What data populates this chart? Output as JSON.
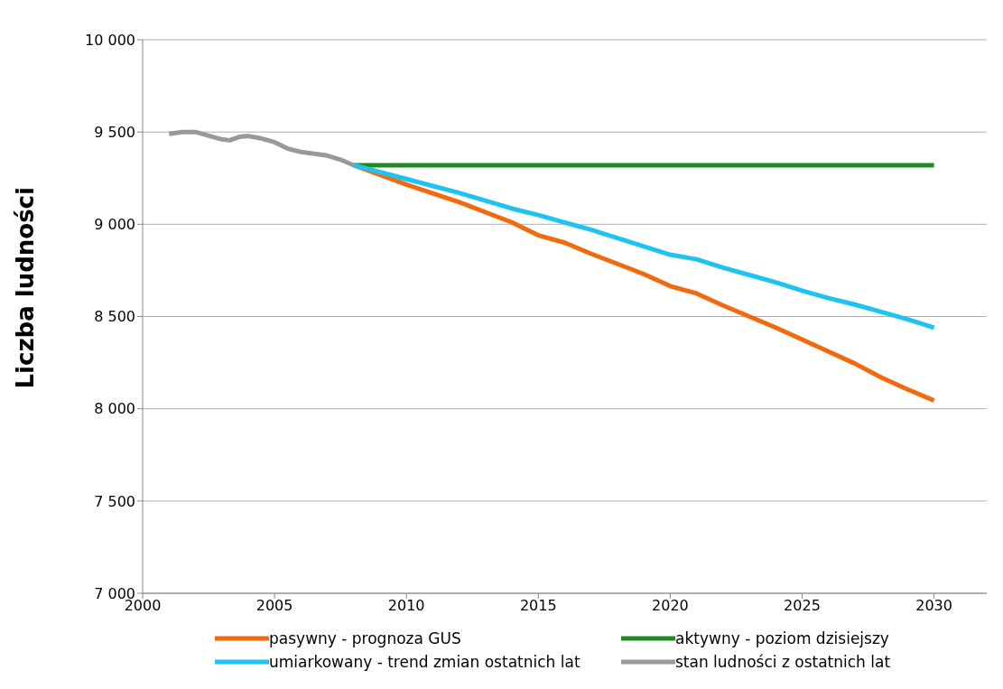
{
  "chart_data": {
    "type": "line",
    "ylabel": "Liczba ludności",
    "xlim": [
      2000,
      2032
    ],
    "xticks": [
      2000,
      2005,
      2010,
      2015,
      2020,
      2025,
      2030
    ],
    "ylim": [
      7000,
      10000
    ],
    "yticks": [
      {
        "value": 7000,
        "label": "7 000"
      },
      {
        "value": 7500,
        "label": "7 500"
      },
      {
        "value": 8000,
        "label": "8 000"
      },
      {
        "value": 8500,
        "label": "8 500"
      },
      {
        "value": 9000,
        "label": "9 000"
      },
      {
        "value": 9500,
        "label": "9 500"
      },
      {
        "value": 10000,
        "label": "10 000"
      }
    ],
    "grid": "y",
    "legend": "bottom",
    "marker": "none",
    "line_style": "solid",
    "series": [
      {
        "name": "pasywny - prognoza GUS",
        "color": "#f26a10",
        "x": [
          2008,
          2010,
          2012,
          2014,
          2015,
          2016,
          2017,
          2018,
          2019,
          2020,
          2021,
          2022,
          2023,
          2024,
          2025,
          2026,
          2027,
          2028,
          2029,
          2030
        ],
        "values": [
          9320,
          9215,
          9120,
          9010,
          8940,
          8900,
          8840,
          8785,
          8730,
          8665,
          8625,
          8560,
          8500,
          8440,
          8375,
          8310,
          8245,
          8170,
          8105,
          8045
        ]
      },
      {
        "name": "aktywny - poziom dzisiejszy",
        "color": "#1f8a1f",
        "x": [
          2008,
          2030
        ],
        "values": [
          9320,
          9320
        ]
      },
      {
        "name": "umiarkowany - trend zmian ostatnich lat",
        "color": "#1ec4f0",
        "x": [
          2008,
          2010,
          2012,
          2014,
          2015,
          2016,
          2017,
          2018,
          2019,
          2020,
          2021,
          2022,
          2023,
          2024,
          2025,
          2026,
          2027,
          2028,
          2029,
          2030
        ],
        "values": [
          9320,
          9245,
          9170,
          9085,
          9050,
          9010,
          8970,
          8925,
          8880,
          8835,
          8810,
          8765,
          8725,
          8685,
          8640,
          8600,
          8565,
          8525,
          8485,
          8440
        ]
      },
      {
        "name": "stan ludności z ostatnich lat",
        "color": "#999999",
        "x": [
          2001,
          2001.5,
          2002,
          2003,
          2003.3,
          2003.7,
          2004,
          2004.5,
          2005,
          2005.5,
          2006,
          2007,
          2007.5,
          2008
        ],
        "values": [
          9490,
          9500,
          9500,
          9460,
          9455,
          9475,
          9478,
          9465,
          9445,
          9410,
          9392,
          9372,
          9350,
          9320
        ]
      }
    ]
  }
}
